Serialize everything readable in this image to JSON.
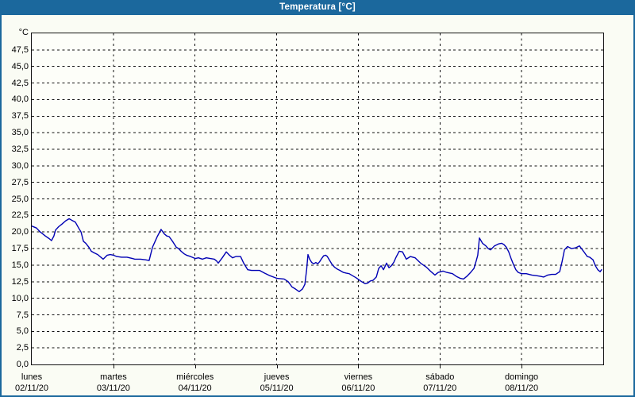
{
  "window": {
    "title": "Temperatura [°C]"
  },
  "colors": {
    "titlebar": "#1b689d",
    "window_border": "#1b689d",
    "background": "#fafcf4",
    "plot_background": "#fdfef9",
    "grid": "#111111",
    "line": "#0000b4",
    "text": "#000000"
  },
  "y_axis": {
    "unit": "°C",
    "tick_labels": [
      "47,5",
      "45,0",
      "42,5",
      "40,0",
      "37,5",
      "35,0",
      "32,5",
      "30,0",
      "27,5",
      "25,0",
      "22,5",
      "20,0",
      "17,5",
      "15,0",
      "12,5",
      "10,0",
      "7,5",
      "5,0",
      "2,5",
      "0,0"
    ],
    "min": 0,
    "max": 50,
    "step": 2.5
  },
  "x_axis": {
    "days": [
      {
        "name": "lunes",
        "date": "02/11/20"
      },
      {
        "name": "martes",
        "date": "03/11/20"
      },
      {
        "name": "miércoles",
        "date": "04/11/20"
      },
      {
        "name": "jueves",
        "date": "05/11/20"
      },
      {
        "name": "viernes",
        "date": "06/11/20"
      },
      {
        "name": "sábado",
        "date": "07/11/20"
      },
      {
        "name": "domingo",
        "date": "08/11/20"
      }
    ]
  },
  "chart_data": {
    "type": "line",
    "title": "Temperatura [°C]",
    "ylabel": "°C",
    "ylim": [
      0,
      50
    ],
    "y_tick_step": 2.5,
    "xlim_hours": [
      0,
      168
    ],
    "x_unit": "hours since lunes 02/11/20 00:00",
    "grid": "dashed",
    "legend": "none",
    "series": [
      {
        "name": "Temperatura",
        "color": "#0000b4",
        "points": [
          [
            0,
            20.9
          ],
          [
            1.4,
            20.6
          ],
          [
            2.3,
            20.1
          ],
          [
            4,
            19.4
          ],
          [
            5.1,
            19
          ],
          [
            5.8,
            18.7
          ],
          [
            6.5,
            19.4
          ],
          [
            7,
            20.3
          ],
          [
            7.9,
            20.8
          ],
          [
            8.9,
            21.2
          ],
          [
            10,
            21.7
          ],
          [
            11,
            22
          ],
          [
            11.7,
            21.8
          ],
          [
            12.8,
            21.5
          ],
          [
            13.8,
            20.6
          ],
          [
            14.5,
            20
          ],
          [
            15.2,
            18.6
          ],
          [
            15.9,
            18.3
          ],
          [
            16.8,
            17.7
          ],
          [
            17.5,
            17.1
          ],
          [
            18.2,
            16.9
          ],
          [
            19.4,
            16.6
          ],
          [
            20.5,
            16.1
          ],
          [
            21,
            15.9
          ],
          [
            22.2,
            16.5
          ],
          [
            23.1,
            16.6
          ],
          [
            24,
            16.5
          ],
          [
            25,
            16.3
          ],
          [
            26.4,
            16.2
          ],
          [
            28,
            16.2
          ],
          [
            29.6,
            16
          ],
          [
            30.3,
            15.9
          ],
          [
            32,
            15.9
          ],
          [
            33.4,
            15.8
          ],
          [
            34.5,
            15.7
          ],
          [
            35,
            16.7
          ],
          [
            35.5,
            17.7
          ],
          [
            36.2,
            18.5
          ],
          [
            36.9,
            19.3
          ],
          [
            38,
            20.4
          ],
          [
            39,
            19.7
          ],
          [
            39.7,
            19.4
          ],
          [
            40.4,
            19.3
          ],
          [
            41.5,
            18.5
          ],
          [
            42.5,
            17.7
          ],
          [
            43.2,
            17.5
          ],
          [
            43.9,
            17.1
          ],
          [
            44.8,
            16.7
          ],
          [
            45.5,
            16.5
          ],
          [
            46.7,
            16.3
          ],
          [
            48.1,
            16
          ],
          [
            49,
            16.1
          ],
          [
            50.2,
            15.9
          ],
          [
            51.3,
            16.1
          ],
          [
            52.5,
            16
          ],
          [
            53.7,
            15.9
          ],
          [
            54.4,
            15.6
          ],
          [
            54.8,
            15.3
          ],
          [
            56,
            16.1
          ],
          [
            57.2,
            17
          ],
          [
            58.1,
            16.5
          ],
          [
            59,
            16.1
          ],
          [
            60,
            16.3
          ],
          [
            61.4,
            16.3
          ],
          [
            62.3,
            15.3
          ],
          [
            63.5,
            14.3
          ],
          [
            64.6,
            14.2
          ],
          [
            67,
            14.2
          ],
          [
            68.4,
            13.8
          ],
          [
            70,
            13.4
          ],
          [
            72.1,
            13
          ],
          [
            74.2,
            12.9
          ],
          [
            75.4,
            12.5
          ],
          [
            76.5,
            11.7
          ],
          [
            77.5,
            11.4
          ],
          [
            78.6,
            11
          ],
          [
            79.6,
            11.4
          ],
          [
            80.3,
            12.1
          ],
          [
            80.8,
            14.3
          ],
          [
            81.2,
            16.6
          ],
          [
            81.7,
            15.9
          ],
          [
            82.3,
            15.4
          ],
          [
            82.9,
            15.2
          ],
          [
            83.5,
            15.4
          ],
          [
            84.1,
            15.2
          ],
          [
            84.6,
            15.5
          ],
          [
            85.1,
            15.9
          ],
          [
            85.8,
            16.4
          ],
          [
            86.4,
            16.5
          ],
          [
            86.9,
            16.3
          ],
          [
            87.6,
            15.7
          ],
          [
            88.3,
            15.1
          ],
          [
            89,
            14.7
          ],
          [
            89.8,
            14.4
          ],
          [
            90.6,
            14.2
          ],
          [
            91.6,
            13.9
          ],
          [
            92.4,
            13.8
          ],
          [
            93.3,
            13.7
          ],
          [
            94.3,
            13.4
          ],
          [
            95.3,
            13.1
          ],
          [
            96.1,
            12.8
          ],
          [
            97,
            12.5
          ],
          [
            98,
            12.2
          ],
          [
            98.8,
            12.3
          ],
          [
            99.5,
            12.6
          ],
          [
            100.3,
            12.7
          ],
          [
            101.3,
            13.2
          ],
          [
            102,
            14.5
          ],
          [
            102.7,
            14.9
          ],
          [
            103.4,
            14.3
          ],
          [
            104.3,
            15.3
          ],
          [
            105,
            14.6
          ],
          [
            105.7,
            14.9
          ],
          [
            106.4,
            15.4
          ],
          [
            107.1,
            16.2
          ],
          [
            108,
            17.1
          ],
          [
            109,
            17
          ],
          [
            110.1,
            15.9
          ],
          [
            111.3,
            16.3
          ],
          [
            112.7,
            16.1
          ],
          [
            114.3,
            15.3
          ],
          [
            116,
            14.7
          ],
          [
            117.4,
            14
          ],
          [
            118.5,
            13.5
          ],
          [
            119.5,
            13.9
          ],
          [
            120.9,
            14.1
          ],
          [
            122,
            13.9
          ],
          [
            123.7,
            13.7
          ],
          [
            124.8,
            13.3
          ],
          [
            126,
            13
          ],
          [
            126.9,
            12.9
          ],
          [
            127.9,
            13.3
          ],
          [
            129,
            13.9
          ],
          [
            130,
            14.5
          ],
          [
            130.7,
            15.7
          ],
          [
            131.1,
            16.5
          ],
          [
            131.6,
            19.1
          ],
          [
            132.5,
            18.3
          ],
          [
            133.5,
            17.9
          ],
          [
            134.2,
            17.5
          ],
          [
            134.9,
            17.3
          ],
          [
            136,
            17.9
          ],
          [
            137.2,
            18.2
          ],
          [
            138.1,
            18.3
          ],
          [
            138.8,
            18.1
          ],
          [
            139.5,
            17.7
          ],
          [
            140.2,
            17
          ],
          [
            140.9,
            16
          ],
          [
            141.6,
            15.1
          ],
          [
            142.3,
            14.3
          ],
          [
            143,
            13.9
          ],
          [
            144,
            13.7
          ],
          [
            145.4,
            13.7
          ],
          [
            147,
            13.5
          ],
          [
            148.4,
            13.4
          ],
          [
            149.6,
            13.3
          ],
          [
            150.5,
            13.2
          ],
          [
            151.7,
            13.5
          ],
          [
            152.8,
            13.6
          ],
          [
            154,
            13.6
          ],
          [
            155.2,
            14
          ],
          [
            155.9,
            15.5
          ],
          [
            156.6,
            17.3
          ],
          [
            157.5,
            17.8
          ],
          [
            158.7,
            17.5
          ],
          [
            159.8,
            17.6
          ],
          [
            161,
            17.9
          ],
          [
            162.2,
            17.1
          ],
          [
            163.3,
            16.3
          ],
          [
            164,
            16.2
          ],
          [
            165,
            15.8
          ],
          [
            165.7,
            14.9
          ],
          [
            166.4,
            14.3
          ],
          [
            167.1,
            14
          ],
          [
            167.5,
            14.3
          ]
        ]
      }
    ]
  }
}
